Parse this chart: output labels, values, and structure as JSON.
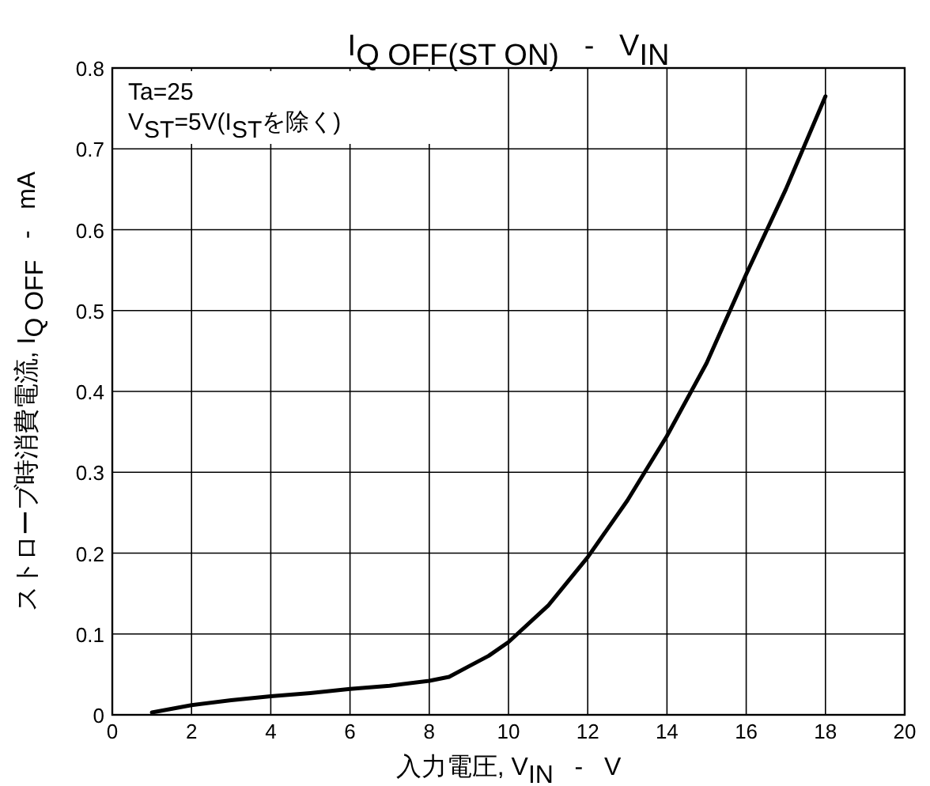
{
  "chart_data": {
    "type": "line",
    "title": "I$_{Q OFF(ST ON)}$   -   V$_{IN}$",
    "xlabel": "入力電圧, V$_{IN}$   -   V",
    "ylabel": "ストローブ時消費電流, I$_{Q OFF}$   -   mA",
    "annotations": [
      "Ta=25",
      "V$_{ST}$=5V(I$_{ST}$を除く)"
    ],
    "x": [
      1,
      2,
      3,
      4,
      5,
      6,
      7,
      8,
      8.5,
      9,
      9.5,
      10,
      11,
      12,
      13,
      14,
      15,
      16,
      17,
      18
    ],
    "series": [
      {
        "color": "#000000",
        "values": [
          0.003,
          0.012,
          0.018,
          0.023,
          0.027,
          0.032,
          0.036,
          0.042,
          0.047,
          0.06,
          0.073,
          0.09,
          0.135,
          0.195,
          0.265,
          0.345,
          0.435,
          0.545,
          0.65,
          0.765
        ]
      }
    ],
    "xlim": [
      0,
      20
    ],
    "ylim": [
      0,
      0.8
    ],
    "xticks": [
      0,
      2,
      4,
      6,
      8,
      10,
      12,
      14,
      16,
      18,
      20
    ],
    "yticks": [
      0,
      0.1,
      0.2,
      0.3,
      0.4,
      0.5,
      0.6,
      0.7,
      0.8
    ],
    "grid": true
  }
}
